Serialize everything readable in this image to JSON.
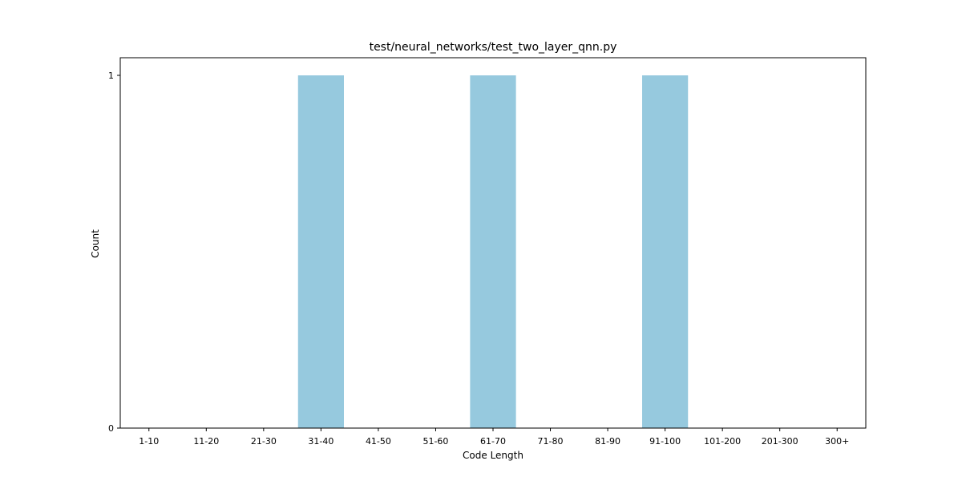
{
  "chart_data": {
    "type": "bar",
    "title": "test/neural_networks/test_two_layer_qnn.py",
    "xlabel": "Code Length",
    "ylabel": "Count",
    "categories": [
      "1-10",
      "11-20",
      "21-30",
      "31-40",
      "41-50",
      "51-60",
      "61-70",
      "71-80",
      "81-90",
      "91-100",
      "101-200",
      "201-300",
      "300+"
    ],
    "values": [
      0,
      0,
      0,
      1,
      0,
      0,
      1,
      0,
      0,
      1,
      0,
      0,
      0
    ],
    "ylim": [
      0,
      1
    ],
    "yticks": [
      0,
      1
    ],
    "bar_color": "#96c9de",
    "grid": false,
    "legend": "none"
  }
}
